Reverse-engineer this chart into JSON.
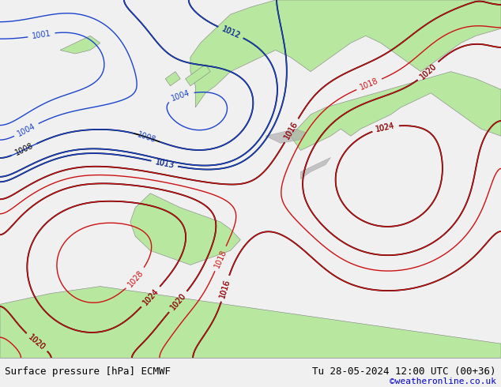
{
  "title_left": "Surface pressure [hPa] ECMWF",
  "title_right": "Tu 28-05-2024 12:00 UTC (00+36)",
  "watermark": "©weatheronline.co.uk",
  "ocean_color": "#e8e8e8",
  "land_color": "#b8e8a0",
  "terrain_color": "#b0b0b0",
  "fig_width": 6.34,
  "fig_height": 4.9,
  "dpi": 100,
  "bottom_bar_color": "#f0f0f0",
  "title_fontsize": 9,
  "watermark_color": "#0000cc",
  "black_levels": [
    1008,
    1012,
    1013,
    1016,
    1020,
    1024
  ],
  "blue_levels": [
    1001,
    1004,
    1008,
    1012,
    1013
  ],
  "red_levels": [
    1016,
    1018,
    1020,
    1024,
    1028
  ]
}
